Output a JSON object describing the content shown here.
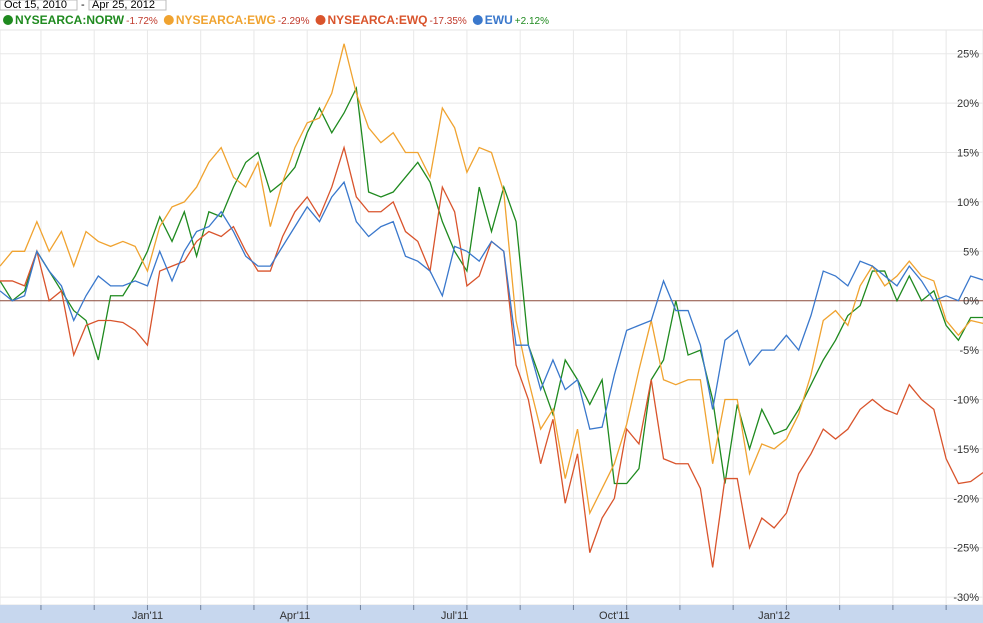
{
  "chart_data": {
    "type": "line",
    "date_range": {
      "start": "Oct 15, 2010",
      "separator": "-",
      "end": "Apr 25, 2012"
    },
    "categories": [
      null,
      null,
      null,
      null,
      null,
      null,
      null,
      null,
      null,
      null,
      null,
      null,
      "Jan'11",
      null,
      null,
      null,
      null,
      null,
      null,
      null,
      null,
      null,
      null,
      null,
      "Apr'11",
      null,
      null,
      null,
      null,
      null,
      null,
      null,
      null,
      null,
      null,
      null,
      null,
      "Jul'11",
      null,
      null,
      null,
      null,
      null,
      null,
      null,
      null,
      null,
      null,
      null,
      null,
      "Oct'11",
      null,
      null,
      null,
      null,
      null,
      null,
      null,
      null,
      null,
      null,
      null,
      null,
      "Jan'12",
      null,
      null,
      null,
      null,
      null,
      null,
      null,
      null,
      null,
      null,
      null,
      null,
      null,
      null,
      null,
      null,
      null
    ],
    "series": [
      {
        "name": "NYSEARCA:NORW",
        "change": "-1.72%",
        "color": "#1f8a1f",
        "values": [
          2,
          0,
          1,
          5,
          3,
          1,
          -1,
          -2,
          -6,
          0.5,
          0.5,
          2.5,
          5,
          8.5,
          6,
          9,
          4.5,
          9,
          8.5,
          11.5,
          14,
          15,
          11,
          12,
          13.5,
          17,
          19.5,
          17,
          19,
          21.5,
          11,
          10.5,
          11,
          12.5,
          14,
          12,
          8,
          5,
          3,
          11.5,
          7,
          11.5,
          8,
          -4.5,
          -8,
          -11.5,
          -6,
          -8,
          -10.5,
          -8,
          -18.5,
          -18.5,
          -17,
          -8,
          -6,
          0,
          -5.5,
          -5,
          -10,
          -18.5,
          -10.5,
          -15,
          -11,
          -13.5,
          -13,
          -11,
          -8.5,
          -6,
          -4,
          -1.5,
          -0.5,
          3,
          3,
          0,
          2.5,
          0,
          1,
          -2.5,
          -4,
          -1.7,
          -1.7
        ]
      },
      {
        "name": "NYSEARCA:EWG",
        "change": "-2.29%",
        "color": "#f0a330",
        "values": [
          3.5,
          5,
          5,
          8,
          5,
          7,
          3.5,
          7,
          6,
          5.5,
          6,
          5.5,
          3,
          7.5,
          9.5,
          10,
          11.5,
          14,
          15.5,
          12.5,
          11.5,
          14,
          7.5,
          12,
          15.5,
          18,
          18.5,
          21,
          26,
          21,
          17.5,
          16,
          17,
          15,
          15,
          12.5,
          19.5,
          17.5,
          13,
          15.5,
          15,
          11,
          -2,
          -8,
          -13,
          -11,
          -18,
          -13,
          -21.5,
          -19,
          -16.5,
          -12.5,
          -7,
          -2,
          -8,
          -8.5,
          -8,
          -8,
          -16.5,
          -10,
          -10,
          -17.5,
          -14.5,
          -15,
          -14,
          -11.5,
          -7.5,
          -2,
          -1,
          -2.5,
          1.5,
          3.5,
          1.5,
          2.5,
          4,
          2.5,
          2,
          -2,
          -3.5,
          -2,
          -2.3
        ]
      },
      {
        "name": "NYSEARCA:EWQ",
        "change": "-17.35%",
        "color": "#d9542c",
        "values": [
          2,
          2,
          1.5,
          5,
          0,
          1,
          -5.5,
          -2.5,
          -2,
          -2,
          -2.2,
          -3,
          -4.5,
          3,
          3.5,
          4,
          6,
          7,
          6.5,
          7.5,
          5,
          3,
          3,
          6.5,
          9,
          10.5,
          8.5,
          11.5,
          15.5,
          10.5,
          9,
          9,
          10,
          7,
          6,
          3,
          11.5,
          9,
          1.5,
          2.5,
          6,
          5,
          -6.5,
          -10,
          -16.5,
          -12,
          -20.5,
          -15.5,
          -25.5,
          -22,
          -20,
          -13,
          -14.5,
          -8,
          -16,
          -16.5,
          -16.5,
          -19,
          -27,
          -18,
          -18,
          -25,
          -22,
          -23,
          -21.5,
          -17.5,
          -15.5,
          -13,
          -14,
          -13,
          -11,
          -10,
          -11,
          -11.5,
          -8.5,
          -10,
          -11,
          -16,
          -18.5,
          -18.3,
          -17.4
        ]
      },
      {
        "name": "EWU",
        "change": "+2.12%",
        "color": "#3a78cc",
        "values": [
          1,
          0,
          0.5,
          5,
          3,
          1.5,
          -2,
          0.5,
          2.5,
          1.5,
          1.5,
          2,
          1.5,
          5,
          2,
          5,
          7,
          7.5,
          9,
          7,
          4.5,
          3.5,
          3.5,
          5.5,
          7.5,
          9.5,
          8,
          10.5,
          12,
          8,
          6.5,
          7.5,
          8,
          4.5,
          4,
          3,
          0.5,
          5.5,
          5,
          4,
          6,
          5,
          -4.5,
          -4.5,
          -9,
          -6,
          -9,
          -8,
          -13,
          -12.8,
          -7.5,
          -3,
          -2.5,
          -2,
          2,
          -1,
          -1,
          -4.5,
          -11,
          -4,
          -3,
          -6.5,
          -5,
          -5,
          -3.5,
          -5,
          -1.5,
          3,
          2.5,
          1.5,
          4,
          3.5,
          2.5,
          1.5,
          3.5,
          2,
          0,
          0.5,
          0,
          2.5,
          2.1
        ]
      }
    ],
    "ylim": [
      -30.8,
      27.4
    ],
    "yticks": [
      {
        "value": 25,
        "label": "25%"
      },
      {
        "value": 20,
        "label": "20%"
      },
      {
        "value": 15,
        "label": "15%"
      },
      {
        "value": 10,
        "label": "10%"
      },
      {
        "value": 5,
        "label": "5%"
      },
      {
        "value": 0,
        "label": "0%"
      },
      {
        "value": -5,
        "label": "-5%"
      },
      {
        "value": -10,
        "label": "-10%"
      },
      {
        "value": -15,
        "label": "-15%"
      },
      {
        "value": -20,
        "label": "-20%"
      },
      {
        "value": -25,
        "label": "-25%"
      },
      {
        "value": -30,
        "label": "-30%"
      }
    ],
    "grid": true
  }
}
